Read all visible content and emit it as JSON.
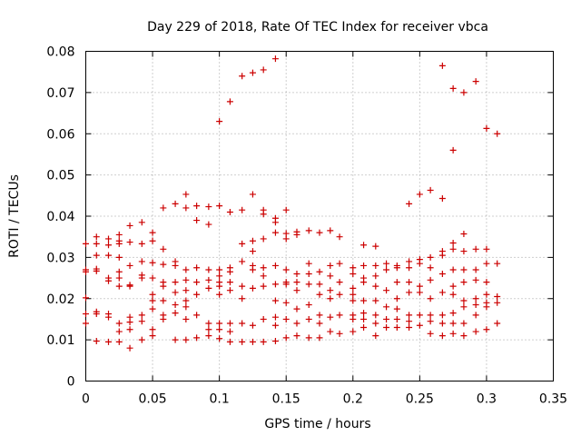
{
  "chart_data": {
    "type": "scatter",
    "title": "Day 229 of 2018, Rate Of TEC Index for receiver vbca",
    "xlabel": "GPS time / hours",
    "ylabel": "ROTI / TECUs",
    "xlim": [
      0,
      0.35
    ],
    "ylim": [
      0,
      0.08
    ],
    "xticks": [
      0,
      0.05,
      0.1,
      0.15,
      0.2,
      0.25,
      0.3,
      0.35
    ],
    "yticks": [
      0,
      0.01,
      0.02,
      0.03,
      0.04,
      0.05,
      0.06,
      0.07,
      0.08
    ],
    "xtick_labels": [
      "0",
      "0.05",
      "0.1",
      "0.15",
      "0.2",
      "0.25",
      "0.3",
      "0.35"
    ],
    "ytick_labels": [
      "0",
      "0.01",
      "0.02",
      "0.03",
      "0.04",
      "0.05",
      "0.06",
      "0.07",
      "0.08"
    ],
    "grid": true,
    "marker": "+",
    "color": "#cc0000",
    "series": [
      {
        "name": "ROTI",
        "points": [
          [
            0.0,
            0.0333
          ],
          [
            0.0,
            0.027
          ],
          [
            0.0,
            0.0265
          ],
          [
            0.0,
            0.0202
          ],
          [
            0.0,
            0.0163
          ],
          [
            0.0,
            0.014
          ],
          [
            0.008,
            0.035
          ],
          [
            0.008,
            0.0333
          ],
          [
            0.008,
            0.0305
          ],
          [
            0.008,
            0.0272
          ],
          [
            0.008,
            0.0267
          ],
          [
            0.008,
            0.0168
          ],
          [
            0.008,
            0.0163
          ],
          [
            0.008,
            0.0097
          ],
          [
            0.017,
            0.0345
          ],
          [
            0.017,
            0.033
          ],
          [
            0.017,
            0.0305
          ],
          [
            0.017,
            0.025
          ],
          [
            0.017,
            0.0243
          ],
          [
            0.017,
            0.0163
          ],
          [
            0.017,
            0.0155
          ],
          [
            0.017,
            0.0095
          ],
          [
            0.025,
            0.0355
          ],
          [
            0.025,
            0.034
          ],
          [
            0.025,
            0.0333
          ],
          [
            0.025,
            0.03
          ],
          [
            0.025,
            0.0265
          ],
          [
            0.025,
            0.025
          ],
          [
            0.025,
            0.023
          ],
          [
            0.025,
            0.014
          ],
          [
            0.025,
            0.012
          ],
          [
            0.025,
            0.0095
          ],
          [
            0.033,
            0.0377
          ],
          [
            0.033,
            0.0337
          ],
          [
            0.033,
            0.028
          ],
          [
            0.033,
            0.0233
          ],
          [
            0.033,
            0.023
          ],
          [
            0.033,
            0.0155
          ],
          [
            0.033,
            0.0143
          ],
          [
            0.033,
            0.0125
          ],
          [
            0.033,
            0.008
          ],
          [
            0.042,
            0.0385
          ],
          [
            0.042,
            0.0333
          ],
          [
            0.042,
            0.029
          ],
          [
            0.042,
            0.0257
          ],
          [
            0.042,
            0.025
          ],
          [
            0.042,
            0.016
          ],
          [
            0.042,
            0.0145
          ],
          [
            0.042,
            0.01
          ],
          [
            0.05,
            0.036
          ],
          [
            0.05,
            0.034
          ],
          [
            0.05,
            0.0287
          ],
          [
            0.05,
            0.025
          ],
          [
            0.05,
            0.021
          ],
          [
            0.05,
            0.0195
          ],
          [
            0.05,
            0.0175
          ],
          [
            0.05,
            0.0125
          ],
          [
            0.05,
            0.011
          ],
          [
            0.058,
            0.042
          ],
          [
            0.058,
            0.032
          ],
          [
            0.058,
            0.0283
          ],
          [
            0.058,
            0.024
          ],
          [
            0.058,
            0.023
          ],
          [
            0.058,
            0.0195
          ],
          [
            0.058,
            0.016
          ],
          [
            0.058,
            0.015
          ],
          [
            0.067,
            0.043
          ],
          [
            0.067,
            0.029
          ],
          [
            0.067,
            0.028
          ],
          [
            0.067,
            0.024
          ],
          [
            0.067,
            0.0215
          ],
          [
            0.067,
            0.0185
          ],
          [
            0.067,
            0.0165
          ],
          [
            0.067,
            0.01
          ],
          [
            0.075,
            0.0453
          ],
          [
            0.075,
            0.042
          ],
          [
            0.075,
            0.027
          ],
          [
            0.075,
            0.0245
          ],
          [
            0.075,
            0.022
          ],
          [
            0.075,
            0.0195
          ],
          [
            0.075,
            0.018
          ],
          [
            0.075,
            0.015
          ],
          [
            0.075,
            0.01
          ],
          [
            0.083,
            0.0425
          ],
          [
            0.083,
            0.039
          ],
          [
            0.083,
            0.0275
          ],
          [
            0.083,
            0.024
          ],
          [
            0.083,
            0.021
          ],
          [
            0.083,
            0.016
          ],
          [
            0.083,
            0.0105
          ],
          [
            0.092,
            0.0423
          ],
          [
            0.092,
            0.038
          ],
          [
            0.092,
            0.027
          ],
          [
            0.092,
            0.0245
          ],
          [
            0.092,
            0.0225
          ],
          [
            0.092,
            0.014
          ],
          [
            0.092,
            0.0125
          ],
          [
            0.092,
            0.011
          ],
          [
            0.1,
            0.063
          ],
          [
            0.1,
            0.0425
          ],
          [
            0.1,
            0.027
          ],
          [
            0.1,
            0.0255
          ],
          [
            0.1,
            0.024
          ],
          [
            0.1,
            0.023
          ],
          [
            0.1,
            0.021
          ],
          [
            0.1,
            0.014
          ],
          [
            0.1,
            0.0125
          ],
          [
            0.1,
            0.0103
          ],
          [
            0.108,
            0.0678
          ],
          [
            0.108,
            0.041
          ],
          [
            0.108,
            0.0275
          ],
          [
            0.108,
            0.0265
          ],
          [
            0.108,
            0.024
          ],
          [
            0.108,
            0.022
          ],
          [
            0.108,
            0.014
          ],
          [
            0.108,
            0.012
          ],
          [
            0.108,
            0.0095
          ],
          [
            0.117,
            0.074
          ],
          [
            0.117,
            0.0415
          ],
          [
            0.117,
            0.0333
          ],
          [
            0.117,
            0.029
          ],
          [
            0.117,
            0.023
          ],
          [
            0.117,
            0.02
          ],
          [
            0.117,
            0.014
          ],
          [
            0.117,
            0.0095
          ],
          [
            0.125,
            0.0748
          ],
          [
            0.125,
            0.0453
          ],
          [
            0.125,
            0.034
          ],
          [
            0.125,
            0.0315
          ],
          [
            0.125,
            0.028
          ],
          [
            0.125,
            0.027
          ],
          [
            0.125,
            0.0225
          ],
          [
            0.125,
            0.0135
          ],
          [
            0.125,
            0.0095
          ],
          [
            0.133,
            0.0755
          ],
          [
            0.133,
            0.0415
          ],
          [
            0.133,
            0.0405
          ],
          [
            0.133,
            0.0345
          ],
          [
            0.133,
            0.0275
          ],
          [
            0.133,
            0.0255
          ],
          [
            0.133,
            0.023
          ],
          [
            0.133,
            0.015
          ],
          [
            0.133,
            0.0095
          ],
          [
            0.142,
            0.0782
          ],
          [
            0.142,
            0.0395
          ],
          [
            0.142,
            0.0385
          ],
          [
            0.142,
            0.036
          ],
          [
            0.142,
            0.028
          ],
          [
            0.142,
            0.0235
          ],
          [
            0.142,
            0.0195
          ],
          [
            0.142,
            0.0155
          ],
          [
            0.142,
            0.0135
          ],
          [
            0.142,
            0.0097
          ],
          [
            0.15,
            0.0415
          ],
          [
            0.15,
            0.0358
          ],
          [
            0.15,
            0.0345
          ],
          [
            0.15,
            0.027
          ],
          [
            0.15,
            0.024
          ],
          [
            0.15,
            0.0235
          ],
          [
            0.15,
            0.019
          ],
          [
            0.15,
            0.015
          ],
          [
            0.15,
            0.0105
          ],
          [
            0.158,
            0.0362
          ],
          [
            0.158,
            0.0355
          ],
          [
            0.158,
            0.026
          ],
          [
            0.158,
            0.024
          ],
          [
            0.158,
            0.022
          ],
          [
            0.158,
            0.0175
          ],
          [
            0.158,
            0.014
          ],
          [
            0.158,
            0.011
          ],
          [
            0.167,
            0.0365
          ],
          [
            0.167,
            0.0285
          ],
          [
            0.167,
            0.026
          ],
          [
            0.167,
            0.0235
          ],
          [
            0.167,
            0.0185
          ],
          [
            0.167,
            0.015
          ],
          [
            0.167,
            0.0105
          ],
          [
            0.175,
            0.036
          ],
          [
            0.175,
            0.0265
          ],
          [
            0.175,
            0.0235
          ],
          [
            0.175,
            0.021
          ],
          [
            0.175,
            0.016
          ],
          [
            0.175,
            0.014
          ],
          [
            0.175,
            0.0105
          ],
          [
            0.183,
            0.0365
          ],
          [
            0.183,
            0.028
          ],
          [
            0.183,
            0.0255
          ],
          [
            0.183,
            0.022
          ],
          [
            0.183,
            0.02
          ],
          [
            0.183,
            0.0155
          ],
          [
            0.183,
            0.012
          ],
          [
            0.19,
            0.035
          ],
          [
            0.19,
            0.0285
          ],
          [
            0.19,
            0.024
          ],
          [
            0.19,
            0.021
          ],
          [
            0.19,
            0.016
          ],
          [
            0.19,
            0.0115
          ],
          [
            0.2,
            0.0275
          ],
          [
            0.2,
            0.026
          ],
          [
            0.2,
            0.0225
          ],
          [
            0.2,
            0.021
          ],
          [
            0.2,
            0.0195
          ],
          [
            0.2,
            0.016
          ],
          [
            0.2,
            0.015
          ],
          [
            0.2,
            0.012
          ],
          [
            0.208,
            0.033
          ],
          [
            0.208,
            0.028
          ],
          [
            0.208,
            0.025
          ],
          [
            0.208,
            0.024
          ],
          [
            0.208,
            0.0195
          ],
          [
            0.208,
            0.0165
          ],
          [
            0.208,
            0.015
          ],
          [
            0.208,
            0.013
          ],
          [
            0.217,
            0.0327
          ],
          [
            0.217,
            0.028
          ],
          [
            0.217,
            0.0255
          ],
          [
            0.217,
            0.023
          ],
          [
            0.217,
            0.0195
          ],
          [
            0.217,
            0.016
          ],
          [
            0.217,
            0.014
          ],
          [
            0.217,
            0.011
          ],
          [
            0.225,
            0.0285
          ],
          [
            0.225,
            0.027
          ],
          [
            0.225,
            0.022
          ],
          [
            0.225,
            0.018
          ],
          [
            0.225,
            0.015
          ],
          [
            0.225,
            0.013
          ],
          [
            0.233,
            0.028
          ],
          [
            0.233,
            0.0275
          ],
          [
            0.233,
            0.024
          ],
          [
            0.233,
            0.02
          ],
          [
            0.233,
            0.0175
          ],
          [
            0.233,
            0.015
          ],
          [
            0.233,
            0.013
          ],
          [
            0.242,
            0.043
          ],
          [
            0.242,
            0.029
          ],
          [
            0.242,
            0.0275
          ],
          [
            0.242,
            0.024
          ],
          [
            0.242,
            0.0215
          ],
          [
            0.242,
            0.016
          ],
          [
            0.242,
            0.0145
          ],
          [
            0.242,
            0.013
          ],
          [
            0.25,
            0.0453
          ],
          [
            0.25,
            0.0295
          ],
          [
            0.25,
            0.0285
          ],
          [
            0.25,
            0.023
          ],
          [
            0.25,
            0.0215
          ],
          [
            0.25,
            0.016
          ],
          [
            0.25,
            0.0135
          ],
          [
            0.258,
            0.0463
          ],
          [
            0.258,
            0.03
          ],
          [
            0.258,
            0.0275
          ],
          [
            0.258,
            0.0245
          ],
          [
            0.258,
            0.02
          ],
          [
            0.258,
            0.016
          ],
          [
            0.258,
            0.0145
          ],
          [
            0.258,
            0.0115
          ],
          [
            0.267,
            0.0765
          ],
          [
            0.267,
            0.0443
          ],
          [
            0.267,
            0.0315
          ],
          [
            0.267,
            0.0305
          ],
          [
            0.267,
            0.026
          ],
          [
            0.267,
            0.0215
          ],
          [
            0.267,
            0.016
          ],
          [
            0.267,
            0.014
          ],
          [
            0.267,
            0.011
          ],
          [
            0.275,
            0.071
          ],
          [
            0.275,
            0.056
          ],
          [
            0.275,
            0.0335
          ],
          [
            0.275,
            0.032
          ],
          [
            0.275,
            0.027
          ],
          [
            0.275,
            0.023
          ],
          [
            0.275,
            0.021
          ],
          [
            0.275,
            0.0165
          ],
          [
            0.275,
            0.014
          ],
          [
            0.275,
            0.0115
          ],
          [
            0.283,
            0.07
          ],
          [
            0.283,
            0.0357
          ],
          [
            0.283,
            0.0315
          ],
          [
            0.283,
            0.027
          ],
          [
            0.283,
            0.024
          ],
          [
            0.283,
            0.0195
          ],
          [
            0.283,
            0.018
          ],
          [
            0.283,
            0.014
          ],
          [
            0.283,
            0.011
          ],
          [
            0.292,
            0.0727
          ],
          [
            0.292,
            0.032
          ],
          [
            0.292,
            0.027
          ],
          [
            0.292,
            0.0245
          ],
          [
            0.292,
            0.02
          ],
          [
            0.292,
            0.0185
          ],
          [
            0.292,
            0.016
          ],
          [
            0.292,
            0.012
          ],
          [
            0.3,
            0.0613
          ],
          [
            0.3,
            0.032
          ],
          [
            0.3,
            0.0285
          ],
          [
            0.3,
            0.024
          ],
          [
            0.3,
            0.021
          ],
          [
            0.3,
            0.019
          ],
          [
            0.3,
            0.018
          ],
          [
            0.3,
            0.0125
          ],
          [
            0.308,
            0.06
          ],
          [
            0.308,
            0.0285
          ],
          [
            0.308,
            0.0205
          ],
          [
            0.308,
            0.019
          ],
          [
            0.308,
            0.014
          ]
        ]
      }
    ]
  }
}
